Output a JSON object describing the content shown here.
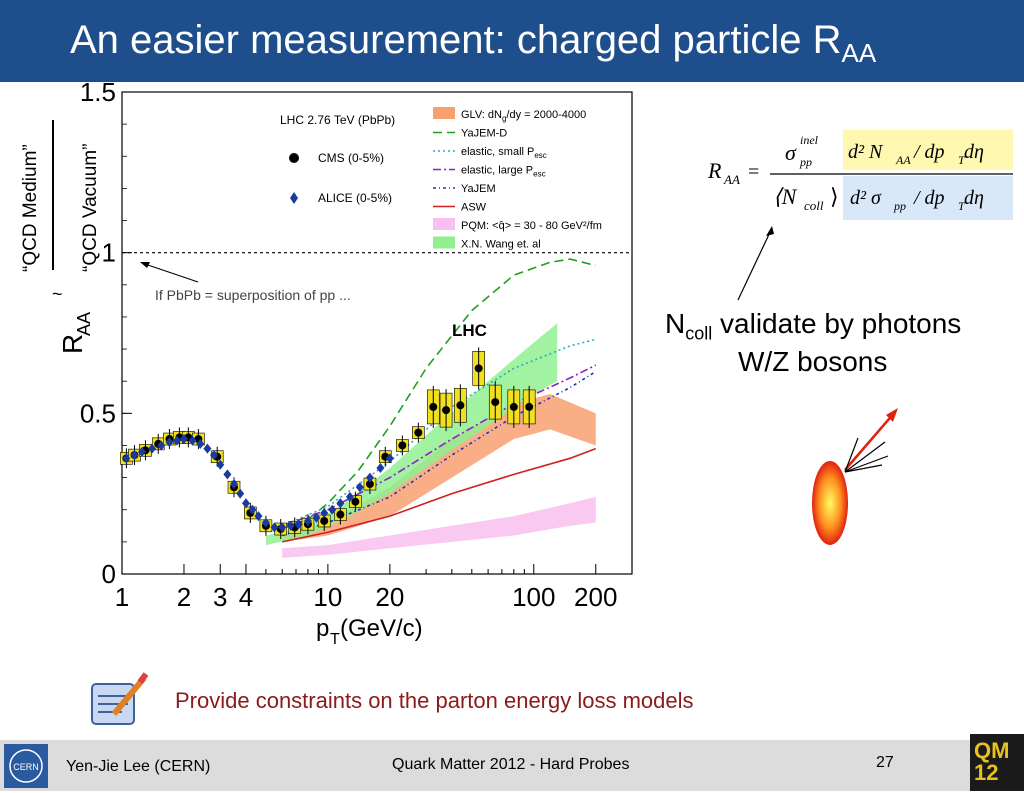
{
  "slide": {
    "title_main": "An easier measurement: charged particle R",
    "title_sub": "AA",
    "ylabel_left1": "“QCD Medium”",
    "ylabel_left2": "“QCD Vacuum”",
    "ncoll_text_main": "N",
    "ncoll_text_sub": "coll",
    "ncoll_text_rest": " validate by photons",
    "wz_text": "W/Z bosons",
    "constraint_text": "Provide constraints on the parton energy loss models",
    "footer_author": "Yen-Jie Lee (CERN)",
    "footer_conf": "Quark Matter 2012 - Hard Probes",
    "footer_page": "27",
    "qm_logo_text": "QM\n12",
    "cern_logo_text": "CERN"
  },
  "formula": {
    "lhs": "R",
    "lhs_sub": "AA",
    "equals": "=",
    "sigma_text": "σ",
    "sigma_sup": "inel",
    "sigma_sub": "pp",
    "ncoll_bracket": "⟨N",
    "ncoll_sub": "coll",
    "ncoll_close": "⟩",
    "num_top": "d² N",
    "num_top_sub": "AA",
    "num_top_rest": "/ dp",
    "num_top_T": "T",
    "num_top_end": " dη",
    "num_bot": "d² σ",
    "num_bot_sub": "pp",
    "num_bot_rest": "/ dp",
    "num_bot_T": "T",
    "num_bot_end": " dη",
    "num_top_bg": "#fff8b0",
    "num_bot_bg": "#d8e8f8"
  },
  "chart_data": {
    "type": "scatter",
    "xscale": "log",
    "xlim": [
      1,
      300
    ],
    "ylim": [
      0,
      1.5
    ],
    "xlabel": "p",
    "xlabel_sub": "T",
    "xlabel_rest": " (GeV/c)",
    "ylabel": "R",
    "ylabel_sub": "AA",
    "ylabel_tilde": "~",
    "xticks": [
      1,
      2,
      3,
      4,
      10,
      20,
      100,
      200
    ],
    "xtick_labels": [
      "1",
      "2",
      "3",
      "4",
      "10",
      "20",
      "100",
      "200"
    ],
    "yticks": [
      0,
      0.5,
      1,
      1.5
    ],
    "ytick_labels": [
      "0",
      "0.5",
      "1",
      "1.5"
    ],
    "reference_line": 1,
    "plot_header": "LHC 2.76 TeV (PbPb)",
    "lhc_label": "LHC",
    "pbpb_annotation": "If PbPb = superposition of pp ...",
    "legend_left": [
      {
        "label": "CMS (0-5%)",
        "marker": "circle",
        "color": "#000000"
      },
      {
        "label": "ALICE (0-5%)",
        "marker": "diamond",
        "color": "#1a3aa0"
      }
    ],
    "legend_right": [
      {
        "label": "GLV: dN",
        "label_sub": "g",
        "label_rest": "/dy = 2000-4000",
        "style": "band",
        "color": "#f8a070"
      },
      {
        "label": "YaJEM-D",
        "label_sub": "",
        "label_rest": "",
        "style": "dashed",
        "color": "#20a020"
      },
      {
        "label": "elastic, small P",
        "label_sub": "esc",
        "label_rest": "",
        "style": "dotted",
        "color": "#20b0c0"
      },
      {
        "label": "elastic, large P",
        "label_sub": "esc",
        "label_rest": "",
        "style": "dashdot",
        "color": "#9020c0"
      },
      {
        "label": "YaJEM",
        "label_sub": "",
        "label_rest": "",
        "style": "dashdotblue",
        "color": "#2030c0"
      },
      {
        "label": "ASW",
        "label_sub": "",
        "label_rest": "",
        "style": "solid",
        "color": "#d02020"
      },
      {
        "label": "PQM: <q̂> = 30 - 80 GeV",
        "label_sub": "",
        "label_rest": "²/fm",
        "style": "band",
        "color": "#f8c0f0"
      },
      {
        "label": "X.N. Wang et. al",
        "label_sub": "",
        "label_rest": "",
        "style": "band",
        "color": "#90f090"
      }
    ],
    "series": [
      {
        "name": "CMS (0-5%)",
        "marker": "circle",
        "color": "#000000",
        "box": "#f0e020",
        "x": [
          1.05,
          1.15,
          1.3,
          1.5,
          1.7,
          1.9,
          2.1,
          2.35,
          2.9,
          3.5,
          4.2,
          5.0,
          5.9,
          6.9,
          8.0,
          9.6,
          11.5,
          13.6,
          16.0,
          19.0,
          23.0,
          27.5,
          32.5,
          37.5,
          44.0,
          54.0,
          65.0,
          80.0,
          95.0
        ],
        "y": [
          0.36,
          0.37,
          0.385,
          0.405,
          0.42,
          0.425,
          0.425,
          0.42,
          0.365,
          0.27,
          0.19,
          0.15,
          0.14,
          0.145,
          0.155,
          0.165,
          0.185,
          0.225,
          0.28,
          0.365,
          0.4,
          0.44,
          0.52,
          0.51,
          0.525,
          0.64,
          0.535,
          0.52,
          0.52
        ]
      },
      {
        "name": "ALICE (0-5%)",
        "marker": "diamond",
        "color": "#1a3aa0",
        "x": [
          1.05,
          1.15,
          1.25,
          1.4,
          1.55,
          1.7,
          1.85,
          2.0,
          2.2,
          2.4,
          2.6,
          2.8,
          3.0,
          3.25,
          3.5,
          3.75,
          4.0,
          4.3,
          4.6,
          5.0,
          5.5,
          6.0,
          6.6,
          7.2,
          8.0,
          8.8,
          9.6,
          10.5,
          11.5,
          12.8,
          14.3,
          16.0,
          18.0,
          20.0
        ],
        "y": [
          0.36,
          0.37,
          0.38,
          0.39,
          0.4,
          0.41,
          0.415,
          0.42,
          0.415,
          0.405,
          0.39,
          0.37,
          0.34,
          0.31,
          0.28,
          0.25,
          0.22,
          0.2,
          0.18,
          0.16,
          0.145,
          0.145,
          0.15,
          0.155,
          0.165,
          0.175,
          0.19,
          0.2,
          0.22,
          0.24,
          0.27,
          0.3,
          0.33,
          0.36
        ]
      },
      {
        "name": "YaJEM-D",
        "style": "dashed",
        "color": "#20a020",
        "x": [
          6,
          8,
          10,
          14,
          20,
          30,
          50,
          80,
          120,
          150,
          200
        ],
        "y": [
          0.14,
          0.17,
          0.22,
          0.32,
          0.46,
          0.64,
          0.82,
          0.93,
          0.97,
          0.98,
          0.96
        ]
      },
      {
        "name": "elastic, small Pesc",
        "style": "dotted",
        "color": "#20b0c0",
        "x": [
          6,
          10,
          20,
          40,
          80,
          150,
          200
        ],
        "y": [
          0.15,
          0.21,
          0.35,
          0.52,
          0.64,
          0.71,
          0.73
        ]
      },
      {
        "name": "elastic, large Pesc",
        "style": "dashdot",
        "color": "#9020c0",
        "x": [
          6,
          10,
          20,
          40,
          80,
          150,
          200
        ],
        "y": [
          0.15,
          0.2,
          0.3,
          0.42,
          0.53,
          0.61,
          0.65
        ]
      },
      {
        "name": "YaJEM",
        "style": "dashdotblue",
        "color": "#2030c0",
        "x": [
          6,
          10,
          20,
          40,
          80,
          150,
          200
        ],
        "y": [
          0.12,
          0.16,
          0.24,
          0.37,
          0.49,
          0.58,
          0.63
        ]
      },
      {
        "name": "ASW",
        "style": "solid",
        "color": "#d02020",
        "x": [
          6,
          10,
          20,
          40,
          80,
          150,
          200
        ],
        "y": [
          0.1,
          0.13,
          0.18,
          0.25,
          0.31,
          0.36,
          0.39
        ]
      }
    ],
    "bands": [
      {
        "name": "GLV",
        "color": "#f8a070",
        "x": [
          6,
          10,
          20,
          40,
          80,
          120,
          200
        ],
        "low": [
          0.1,
          0.12,
          0.18,
          0.3,
          0.42,
          0.45,
          0.4
        ],
        "high": [
          0.12,
          0.16,
          0.27,
          0.42,
          0.53,
          0.56,
          0.5
        ]
      },
      {
        "name": "PQM",
        "color": "#f8c0f0",
        "x": [
          6,
          10,
          20,
          40,
          80,
          150,
          200
        ],
        "low": [
          0.05,
          0.06,
          0.08,
          0.1,
          0.12,
          0.15,
          0.16
        ],
        "high": [
          0.08,
          0.09,
          0.12,
          0.15,
          0.18,
          0.22,
          0.24
        ]
      },
      {
        "name": "X.N. Wang et. al",
        "color": "#90f090",
        "x": [
          5,
          8,
          12,
          20,
          35,
          60,
          100,
          130
        ],
        "low": [
          0.09,
          0.12,
          0.17,
          0.25,
          0.36,
          0.46,
          0.56,
          0.6
        ],
        "high": [
          0.12,
          0.15,
          0.22,
          0.33,
          0.47,
          0.6,
          0.72,
          0.78
        ]
      }
    ]
  }
}
